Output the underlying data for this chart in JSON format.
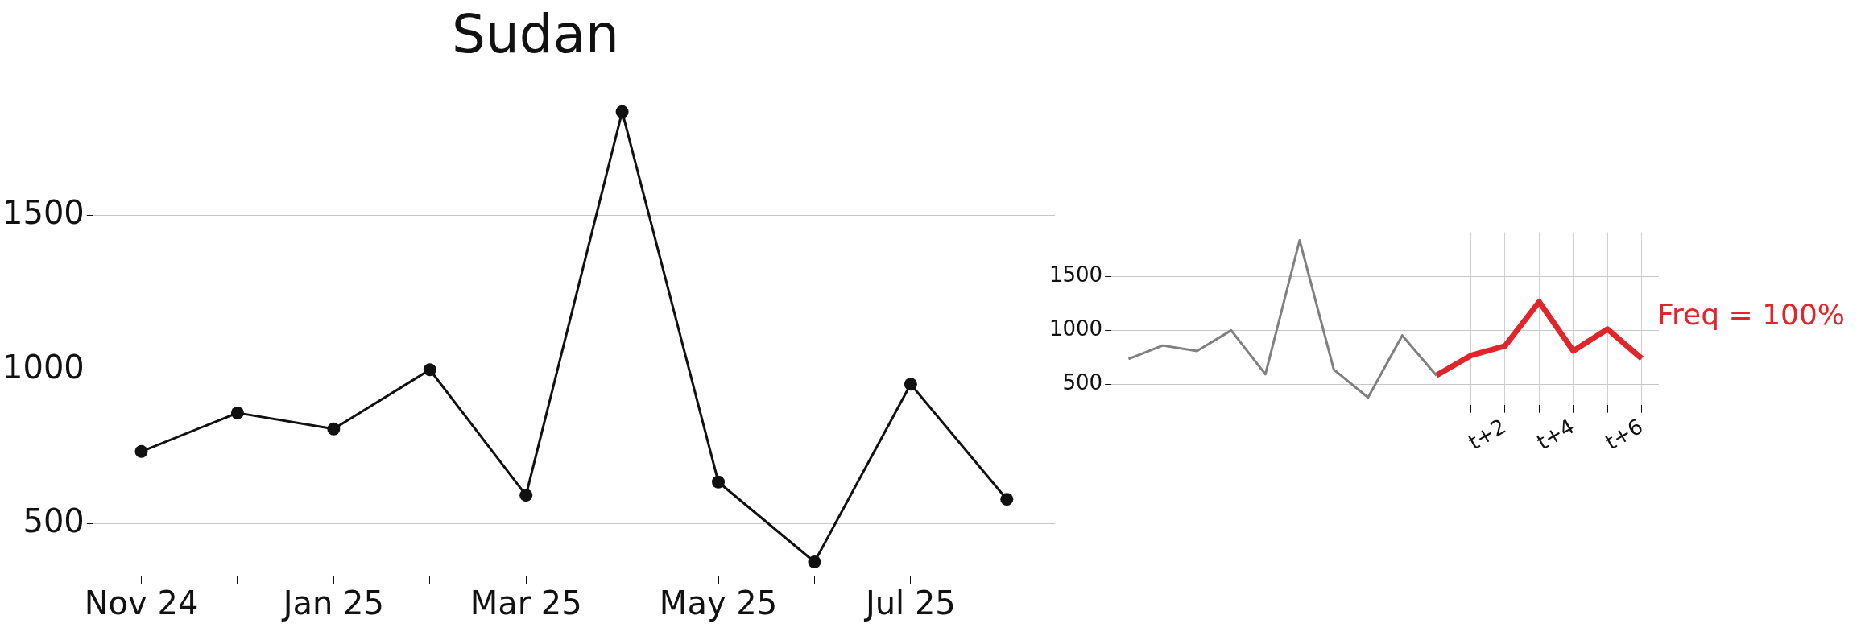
{
  "chart_data": [
    {
      "type": "line",
      "title": "Sudan",
      "categories": [
        "Nov 24",
        null,
        "Jan 25",
        null,
        "Mar 25",
        null,
        "May 25",
        null,
        "Jul 25",
        null
      ],
      "series": [
        {
          "color": "#111111",
          "values": [
            735,
            860,
            808,
            1000,
            593,
            1836,
            636,
            377,
            953,
            580
          ]
        }
      ],
      "ylim": [
        330,
        1880
      ],
      "yticks": [
        500,
        1000,
        1500
      ],
      "grid": "y",
      "marker": "circle",
      "legend": false
    },
    {
      "type": "line",
      "categories": [
        null,
        null,
        null,
        null,
        null,
        null,
        null,
        null,
        null,
        null,
        null,
        "t+2",
        null,
        "t+4",
        null,
        "t+6"
      ],
      "series": [
        {
          "color": "#808080",
          "values": [
            735,
            860,
            808,
            1000,
            593,
            1836,
            636,
            377,
            953,
            580,
            null,
            null,
            null,
            null,
            null,
            null
          ]
        },
        {
          "color": "#e0262b",
          "values": [
            null,
            null,
            null,
            null,
            null,
            null,
            null,
            null,
            null,
            582,
            766,
            855,
            1266,
            809,
            1012,
            738
          ]
        }
      ],
      "ylim": [
        310,
        1910
      ],
      "yticks": [
        500,
        1000,
        1500
      ],
      "grid": true,
      "marker": "none",
      "legend": false,
      "annotations": [
        "Freq = 100%"
      ]
    }
  ]
}
